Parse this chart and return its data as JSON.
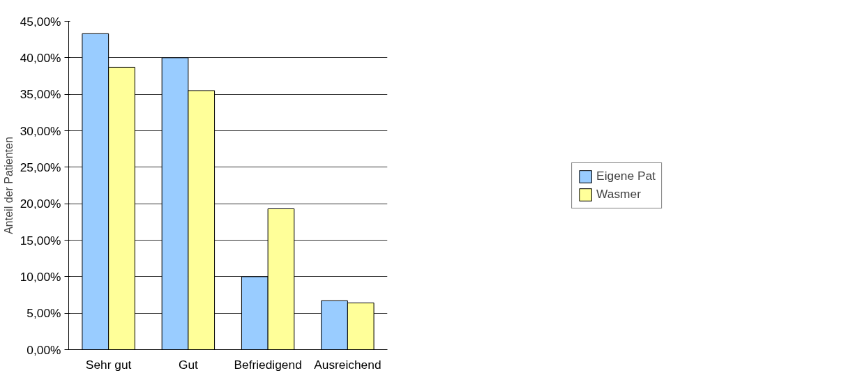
{
  "chart_data": {
    "type": "bar",
    "ylabel": "Anteil der Patienten",
    "categories": [
      "Sehr gut",
      "Gut",
      "Befriedigend",
      "Ausreichend"
    ],
    "series": [
      {
        "name": "Eigene Pat",
        "color": "#99ccff",
        "values": [
          43.3,
          40.0,
          10.0,
          6.7
        ]
      },
      {
        "name": "Wasmer",
        "color": "#ffff99",
        "values": [
          38.7,
          35.5,
          19.3,
          6.4
        ]
      }
    ],
    "ylim": [
      0,
      45
    ],
    "yticks": [
      {
        "value": 0,
        "label": "0,00%"
      },
      {
        "value": 5,
        "label": "5,00%"
      },
      {
        "value": 10,
        "label": "10,00%"
      },
      {
        "value": 15,
        "label": "15,00%"
      },
      {
        "value": 20,
        "label": "20,00%"
      },
      {
        "value": 25,
        "label": "25,00%"
      },
      {
        "value": 30,
        "label": "30,00%"
      },
      {
        "value": 35,
        "label": "35,00%"
      },
      {
        "value": 40,
        "label": "40,00%"
      },
      {
        "value": 45,
        "label": "45,00%"
      }
    ],
    "grid": "y",
    "legend": "right"
  }
}
